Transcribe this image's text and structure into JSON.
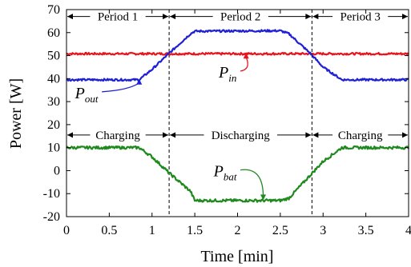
{
  "chart_data": {
    "type": "line",
    "xlabel": "Time [min]",
    "ylabel": "Power [W]",
    "xlim": [
      0,
      4
    ],
    "ylim": [
      -20,
      70
    ],
    "xticks": [
      "0",
      "0.5",
      "1",
      "1.5",
      "2",
      "2.5",
      "3",
      "3.5",
      "4"
    ],
    "yticks": [
      "-20",
      "-10",
      "0",
      "10",
      "20",
      "30",
      "40",
      "50",
      "60",
      "70"
    ],
    "grid": false,
    "series": [
      {
        "key": "in",
        "color": "#e8141c",
        "x": [
          0,
          0.5,
          1.0,
          1.5,
          2.0,
          2.5,
          3.0,
          3.5,
          4.0
        ],
        "values": [
          50.8,
          50.8,
          50.8,
          50.8,
          50.8,
          50.8,
          50.8,
          50.8,
          50.8
        ]
      },
      {
        "key": "out",
        "color": "#1f20d6",
        "x": [
          0,
          0.85,
          1.0,
          1.2,
          1.45,
          1.5,
          2.5,
          2.6,
          2.85,
          3.0,
          3.22,
          4.0
        ],
        "values": [
          39.5,
          39.5,
          44,
          51,
          59.5,
          60.6,
          60.8,
          59.5,
          51,
          45,
          39.5,
          39.5
        ]
      },
      {
        "key": "bat",
        "color": "#1e8a1e",
        "x": [
          0,
          0.85,
          1.0,
          1.2,
          1.45,
          1.5,
          2.5,
          2.6,
          2.85,
          3.0,
          3.22,
          4.0
        ],
        "values": [
          10.0,
          10.0,
          6,
          -1,
          -9,
          -13,
          -13,
          -12,
          -2,
          4,
          10.0,
          10.0
        ]
      }
    ],
    "vlines": [
      1.2,
      2.87
    ],
    "periods": [
      {
        "label": "Period 1",
        "from": 0,
        "to": 1.2
      },
      {
        "label": "Period 2",
        "from": 1.2,
        "to": 2.87
      },
      {
        "label": "Period 3",
        "from": 2.87,
        "to": 4
      }
    ],
    "phases": [
      {
        "label": "Charging",
        "from": 0,
        "to": 1.2
      },
      {
        "label": "Discharging",
        "from": 1.2,
        "to": 2.87
      },
      {
        "label": "Charging",
        "from": 2.87,
        "to": 4
      }
    ],
    "annotations": [
      {
        "main": "P",
        "sub": "out",
        "color": "#1f20d6",
        "text_x": 0.1,
        "text_y": 31.5,
        "target_x": 0.85,
        "target_y": 39.5
      },
      {
        "main": "P",
        "sub": "in",
        "color": "#e8141c",
        "text_x": 1.78,
        "text_y": 40.5,
        "target_x": 2.1,
        "target_y": 50.8
      },
      {
        "main": "P",
        "sub": "bat",
        "color": "#1e8a1e",
        "text_x": 1.72,
        "text_y": -2.5,
        "target_x": 2.3,
        "target_y": -12.5
      }
    ]
  }
}
